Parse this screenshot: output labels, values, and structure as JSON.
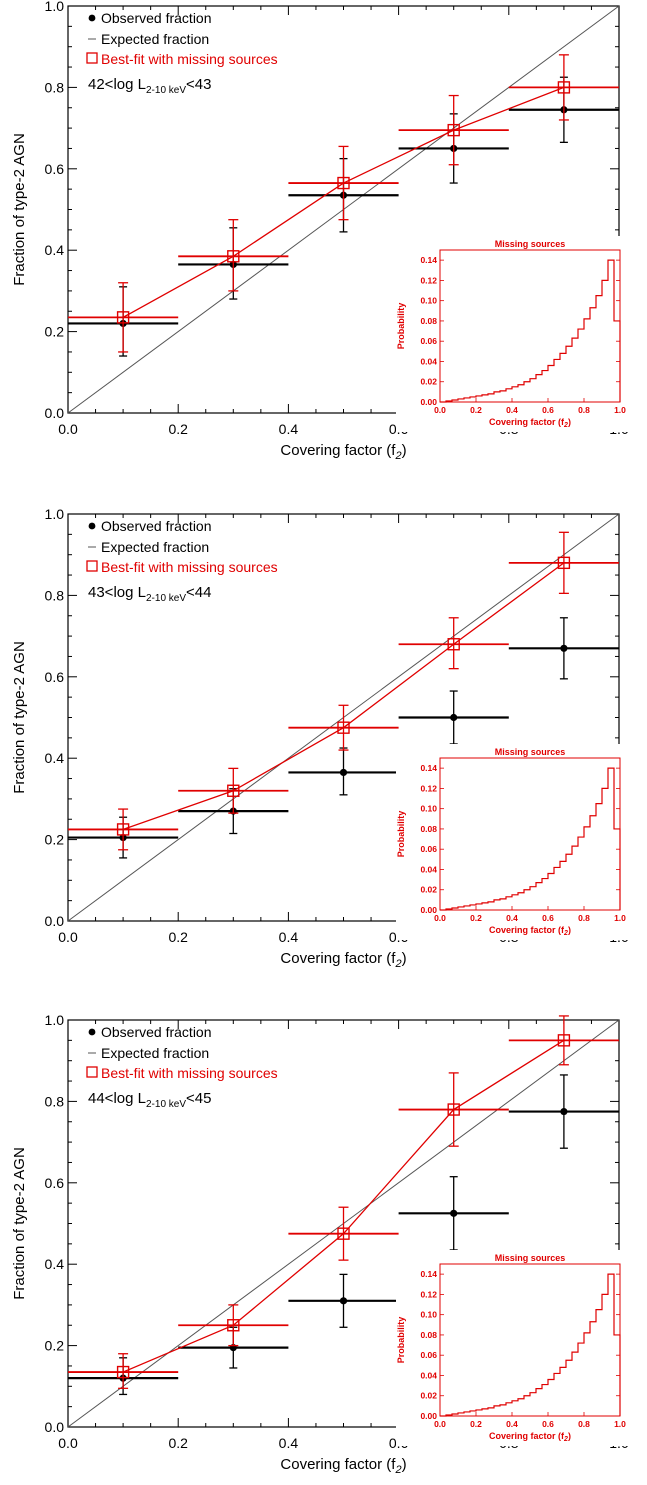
{
  "colors": {
    "observed": "#000000",
    "expected": "#555555",
    "bestfit": "#e00000",
    "inset": "#e00000"
  },
  "legend": {
    "observed": "Observed fraction",
    "expected": "Expected fraction",
    "bestfit": "Best-fit with missing sources"
  },
  "chart_data": [
    {
      "type": "scatter",
      "panel_label": {
        "prefix": "42<log L",
        "sub": "2-10 keV",
        "suffix": "<43"
      },
      "xlabel": "Covering factor (f",
      "xlabel_sub": "2",
      "xlabel_close": ")",
      "ylabel": "Fraction of type-2 AGN",
      "xlim": [
        0.0,
        1.0
      ],
      "ylim": [
        0.0,
        1.0
      ],
      "x_ticks": [
        "0.0",
        "0.2",
        "0.4",
        "0.6",
        "0.8",
        "1.0"
      ],
      "y_ticks": [
        "0.0",
        "0.2",
        "0.4",
        "0.6",
        "0.8",
        "1.0"
      ],
      "series": [
        {
          "name": "Observed fraction",
          "x": [
            0.1,
            0.3,
            0.5,
            0.7,
            0.9
          ],
          "xerr": 0.1,
          "y": [
            0.22,
            0.365,
            0.535,
            0.65,
            0.745
          ],
          "yerr_low": [
            0.08,
            0.085,
            0.09,
            0.085,
            0.08
          ],
          "yerr_high": [
            0.09,
            0.09,
            0.09,
            0.085,
            0.08
          ]
        },
        {
          "name": "Expected fraction",
          "x": [
            0.0,
            1.0
          ],
          "y": [
            0.0,
            1.0
          ]
        },
        {
          "name": "Best-fit with missing sources",
          "x": [
            0.1,
            0.3,
            0.5,
            0.7,
            0.9
          ],
          "xerr": 0.1,
          "y": [
            0.235,
            0.385,
            0.565,
            0.695,
            0.8
          ],
          "yerr_low": [
            0.085,
            0.085,
            0.09,
            0.085,
            0.08
          ],
          "yerr_high": [
            0.085,
            0.09,
            0.09,
            0.085,
            0.08
          ]
        }
      ],
      "inset": {
        "type": "histogram",
        "title": "Missing sources",
        "xlabel": "Covering factor (f",
        "xlabel_sub": "2",
        "xlabel_close": ")",
        "ylabel": "Probability",
        "xlim": [
          0.0,
          1.0
        ],
        "ylim": [
          0.0,
          0.15
        ],
        "x_ticks": [
          "0.0",
          "0.2",
          "0.4",
          "0.6",
          "0.8",
          "1.0"
        ],
        "y_ticks": [
          "0.00",
          "0.02",
          "0.04",
          "0.06",
          "0.08",
          "0.10",
          "0.12",
          "0.14"
        ],
        "values": [
          0.0,
          0.001,
          0.002,
          0.003,
          0.004,
          0.005,
          0.006,
          0.007,
          0.008,
          0.01,
          0.011,
          0.013,
          0.015,
          0.017,
          0.02,
          0.023,
          0.027,
          0.031,
          0.036,
          0.042,
          0.048,
          0.055,
          0.063,
          0.072,
          0.082,
          0.093,
          0.105,
          0.12,
          0.14,
          0.08
        ]
      }
    },
    {
      "type": "scatter",
      "panel_label": {
        "prefix": "43<log L",
        "sub": "2-10 keV",
        "suffix": "<44"
      },
      "xlabel": "Covering factor (f",
      "xlabel_sub": "2",
      "xlabel_close": ")",
      "ylabel": "Fraction of type-2 AGN",
      "xlim": [
        0.0,
        1.0
      ],
      "ylim": [
        0.0,
        1.0
      ],
      "x_ticks": [
        "0.0",
        "0.2",
        "0.4",
        "0.6",
        "0.8",
        "1.0"
      ],
      "y_ticks": [
        "0.0",
        "0.2",
        "0.4",
        "0.6",
        "0.8",
        "1.0"
      ],
      "series": [
        {
          "name": "Observed fraction",
          "x": [
            0.1,
            0.3,
            0.5,
            0.7,
            0.9
          ],
          "xerr": 0.1,
          "y": [
            0.205,
            0.27,
            0.365,
            0.5,
            0.67
          ],
          "yerr_low": [
            0.05,
            0.055,
            0.055,
            0.065,
            0.075
          ],
          "yerr_high": [
            0.05,
            0.055,
            0.06,
            0.065,
            0.075
          ]
        },
        {
          "name": "Expected fraction",
          "x": [
            0.0,
            1.0
          ],
          "y": [
            0.0,
            1.0
          ]
        },
        {
          "name": "Best-fit with missing sources",
          "x": [
            0.1,
            0.3,
            0.5,
            0.7,
            0.9
          ],
          "xerr": 0.1,
          "y": [
            0.225,
            0.32,
            0.475,
            0.68,
            0.88
          ],
          "yerr_low": [
            0.05,
            0.055,
            0.055,
            0.06,
            0.075
          ],
          "yerr_high": [
            0.05,
            0.055,
            0.055,
            0.065,
            0.075
          ]
        }
      ],
      "inset": {
        "type": "histogram",
        "title": "Missing sources",
        "xlabel": "Covering factor (f",
        "xlabel_sub": "2",
        "xlabel_close": ")",
        "ylabel": "Probability",
        "xlim": [
          0.0,
          1.0
        ],
        "ylim": [
          0.0,
          0.15
        ],
        "x_ticks": [
          "0.0",
          "0.2",
          "0.4",
          "0.6",
          "0.8",
          "1.0"
        ],
        "y_ticks": [
          "0.00",
          "0.02",
          "0.04",
          "0.06",
          "0.08",
          "0.10",
          "0.12",
          "0.14"
        ],
        "values": [
          0.0,
          0.001,
          0.002,
          0.003,
          0.004,
          0.005,
          0.006,
          0.007,
          0.008,
          0.01,
          0.011,
          0.013,
          0.015,
          0.017,
          0.02,
          0.023,
          0.027,
          0.031,
          0.036,
          0.042,
          0.048,
          0.055,
          0.063,
          0.072,
          0.082,
          0.093,
          0.105,
          0.12,
          0.14,
          0.08
        ]
      }
    },
    {
      "type": "scatter",
      "panel_label": {
        "prefix": "44<log L",
        "sub": "2-10 keV",
        "suffix": "<45"
      },
      "xlabel": "Covering factor (f",
      "xlabel_sub": "2",
      "xlabel_close": ")",
      "ylabel": "Fraction of type-2 AGN",
      "xlim": [
        0.0,
        1.0
      ],
      "ylim": [
        0.0,
        1.0
      ],
      "x_ticks": [
        "0.0",
        "0.2",
        "0.4",
        "0.6",
        "0.8",
        "1.0"
      ],
      "y_ticks": [
        "0.0",
        "0.2",
        "0.4",
        "0.6",
        "0.8",
        "1.0"
      ],
      "series": [
        {
          "name": "Observed fraction",
          "x": [
            0.1,
            0.3,
            0.5,
            0.7,
            0.9
          ],
          "xerr": 0.1,
          "y": [
            0.12,
            0.195,
            0.31,
            0.525,
            0.775
          ],
          "yerr_low": [
            0.04,
            0.05,
            0.065,
            0.09,
            0.09
          ],
          "yerr_high": [
            0.05,
            0.05,
            0.065,
            0.09,
            0.09
          ]
        },
        {
          "name": "Expected fraction",
          "x": [
            0.0,
            1.0
          ],
          "y": [
            0.0,
            1.0
          ]
        },
        {
          "name": "Best-fit with missing sources",
          "x": [
            0.1,
            0.3,
            0.5,
            0.7,
            0.9
          ],
          "xerr": 0.1,
          "y": [
            0.135,
            0.25,
            0.475,
            0.78,
            0.95
          ],
          "yerr_low": [
            0.04,
            0.05,
            0.065,
            0.09,
            0.06
          ],
          "yerr_high": [
            0.045,
            0.05,
            0.065,
            0.09,
            0.06
          ]
        }
      ],
      "inset": {
        "type": "histogram",
        "title": "Missing sources",
        "xlabel": "Covering factor (f",
        "xlabel_sub": "2",
        "xlabel_close": ")",
        "ylabel": "Probability",
        "xlim": [
          0.0,
          1.0
        ],
        "ylim": [
          0.0,
          0.15
        ],
        "x_ticks": [
          "0.0",
          "0.2",
          "0.4",
          "0.6",
          "0.8",
          "1.0"
        ],
        "y_ticks": [
          "0.00",
          "0.02",
          "0.04",
          "0.06",
          "0.08",
          "0.10",
          "0.12",
          "0.14"
        ],
        "values": [
          0.0,
          0.001,
          0.002,
          0.003,
          0.004,
          0.005,
          0.006,
          0.007,
          0.008,
          0.01,
          0.011,
          0.013,
          0.015,
          0.017,
          0.02,
          0.023,
          0.027,
          0.031,
          0.036,
          0.042,
          0.048,
          0.055,
          0.063,
          0.072,
          0.082,
          0.093,
          0.105,
          0.12,
          0.14,
          0.08
        ]
      }
    }
  ]
}
